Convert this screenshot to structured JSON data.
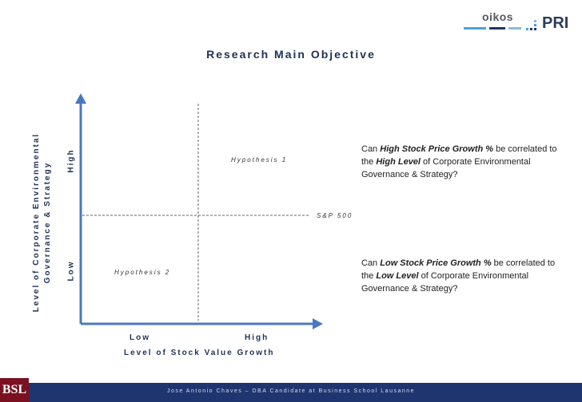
{
  "title": "Research Main Objective",
  "logos": {
    "oikos": "oikos",
    "pri": "PRI",
    "bsl": "BSL",
    "bar_colors": [
      "#4aa3d8",
      "#1f3570",
      "#8fb8d8"
    ]
  },
  "y_axis": {
    "title_line1": "Level of Corporate Environmental",
    "title_line2": "Governance & Strategy",
    "high_label": "High",
    "low_label": "Low"
  },
  "x_axis": {
    "title": "Level of Stock Value Growth",
    "low_label": "Low",
    "high_label": "High"
  },
  "annotations": {
    "hypothesis1": "Hypothesis 1",
    "hypothesis2": "Hypothesis 2",
    "sp500": "S&P 500"
  },
  "questions": {
    "q1_pre": "Can ",
    "q1_bold1": "High Stock Price Growth %",
    "q1_mid": " be correlated to the ",
    "q1_bold2": "High Level",
    "q1_post": " of Corporate Environmental Governance & Strategy?",
    "q2_pre": "Can ",
    "q2_bold1": "Low Stock Price Growth %",
    "q2_mid": " be correlated to the ",
    "q2_bold2": "Low Level",
    "q2_post": " of Corporate Environmental Governance & Strategy?"
  },
  "footer": "Jose Antonio Chaves – DBA Candidate at Business School Lausanne",
  "colors": {
    "axis": "#4a78c0",
    "navy": "#1f3057",
    "footer_bg": "#1f3570"
  }
}
